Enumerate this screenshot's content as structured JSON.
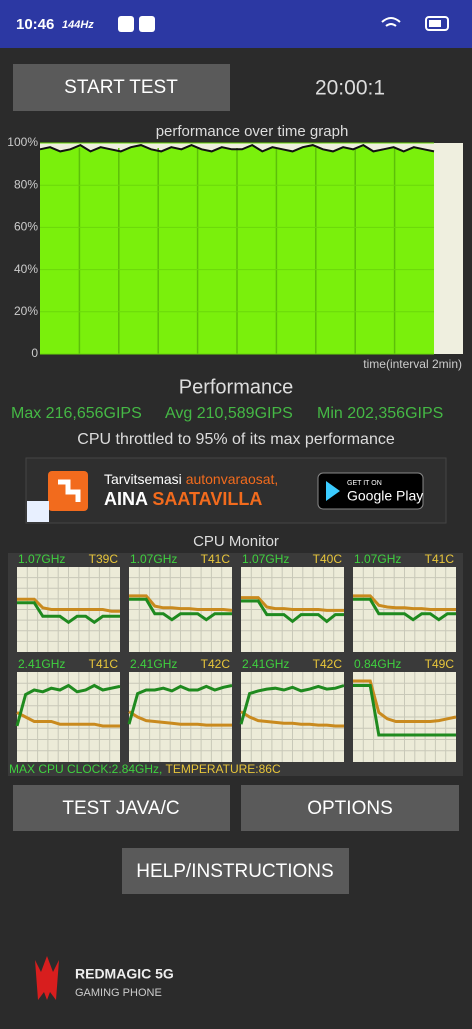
{
  "status_bar": {
    "time": "10:46",
    "refresh": "144Hz"
  },
  "controls": {
    "start": "START TEST",
    "timer": "20:00:1",
    "test_java": "TEST JAVA/C",
    "options": "OPTIONS",
    "help": "HELP/INSTRUCTIONS"
  },
  "graph": {
    "title": "performance over time graph",
    "x_label": "time(interval 2min)",
    "ylim": [
      0,
      100
    ],
    "yticks": [
      0,
      {
        "value": 20,
        "label": "20%"
      },
      {
        "value": 40,
        "label": "40%"
      },
      {
        "value": 60,
        "label": "60%"
      },
      {
        "value": 80,
        "label": "80%"
      },
      {
        "value": 100,
        "label": "100%"
      }
    ],
    "values": [
      97,
      98,
      96,
      97,
      99,
      96,
      98,
      97,
      96,
      98,
      99,
      97,
      96,
      98,
      97,
      99,
      97,
      96,
      98,
      97,
      97,
      99,
      96,
      98,
      97,
      96,
      98,
      99,
      97,
      96,
      98,
      97,
      99,
      96,
      97,
      98,
      96,
      98,
      97,
      96
    ]
  },
  "performance": {
    "heading": "Performance",
    "max": "Max 216,656GIPS",
    "avg": "Avg 210,589GIPS",
    "min": "Min 202,356GIPS",
    "throttle": "CPU throttled to 95% of its max performance"
  },
  "ad": {
    "line1a": "Tarvitsemasi ",
    "line1b": "autonvaraosat,",
    "line2a": "AINA ",
    "line2b": "SAATAVILLA",
    "store_small": "GET IT ON",
    "store": "Google Play"
  },
  "cpu_monitor": {
    "title": "CPU Monitor",
    "line_range": [
      0,
      100
    ],
    "cores": [
      {
        "freq": "1.07GHz",
        "temp": "T39C",
        "freq_line": [
          58,
          58,
          58,
          42,
          42,
          42,
          35,
          42,
          42,
          35,
          42,
          42,
          42
        ],
        "temp_line": [
          62,
          62,
          62,
          52,
          50,
          50,
          50,
          50,
          50,
          50,
          50,
          48,
          48
        ]
      },
      {
        "freq": "1.07GHz",
        "temp": "T41C",
        "freq_line": [
          62,
          62,
          62,
          45,
          45,
          38,
          45,
          45,
          45,
          38,
          45,
          45,
          45
        ],
        "temp_line": [
          66,
          66,
          66,
          54,
          52,
          52,
          51,
          51,
          50,
          50,
          50,
          50,
          49
        ]
      },
      {
        "freq": "1.07GHz",
        "temp": "T40C",
        "freq_line": [
          60,
          60,
          60,
          44,
          44,
          44,
          36,
          44,
          44,
          44,
          36,
          44,
          44
        ],
        "temp_line": [
          64,
          64,
          64,
          53,
          51,
          51,
          50,
          50,
          50,
          50,
          49,
          49,
          49
        ]
      },
      {
        "freq": "1.07GHz",
        "temp": "T41C",
        "freq_line": [
          62,
          62,
          62,
          45,
          45,
          45,
          45,
          38,
          45,
          45,
          38,
          45,
          45
        ],
        "temp_line": [
          66,
          66,
          66,
          55,
          53,
          52,
          52,
          51,
          51,
          50,
          50,
          50,
          50
        ]
      },
      {
        "freq": "2.41GHz",
        "temp": "T41C",
        "freq_line": [
          40,
          75,
          80,
          78,
          82,
          80,
          85,
          78,
          80,
          85,
          80,
          82,
          84
        ],
        "temp_line": [
          55,
          50,
          45,
          45,
          45,
          42,
          42,
          42,
          42,
          42,
          40,
          40,
          40
        ]
      },
      {
        "freq": "2.41GHz",
        "temp": "T42C",
        "freq_line": [
          42,
          76,
          80,
          80,
          82,
          79,
          84,
          80,
          80,
          84,
          80,
          83,
          85
        ],
        "temp_line": [
          56,
          50,
          46,
          45,
          44,
          43,
          42,
          42,
          42,
          41,
          41,
          41,
          41
        ]
      },
      {
        "freq": "2.41GHz",
        "temp": "T42C",
        "freq_line": [
          42,
          76,
          79,
          81,
          82,
          80,
          83,
          79,
          81,
          84,
          81,
          82,
          85
        ],
        "temp_line": [
          56,
          50,
          46,
          45,
          44,
          43,
          43,
          42,
          42,
          41,
          41,
          40,
          40
        ]
      },
      {
        "freq": "0.84GHz",
        "temp": "T49C",
        "freq_line": [
          85,
          85,
          85,
          30,
          30,
          30,
          30,
          30,
          30,
          30,
          30,
          30,
          30
        ],
        "temp_line": [
          90,
          90,
          90,
          55,
          48,
          45,
          45,
          45,
          45,
          45,
          46,
          48,
          50
        ]
      }
    ],
    "clock": "MAX CPU CLOCK:2.84GHz,",
    "temperature": "TEMPERATURE:86C"
  },
  "brand": {
    "name": "REDMAGIC 5G",
    "tagline": "GAMING PHONE"
  }
}
